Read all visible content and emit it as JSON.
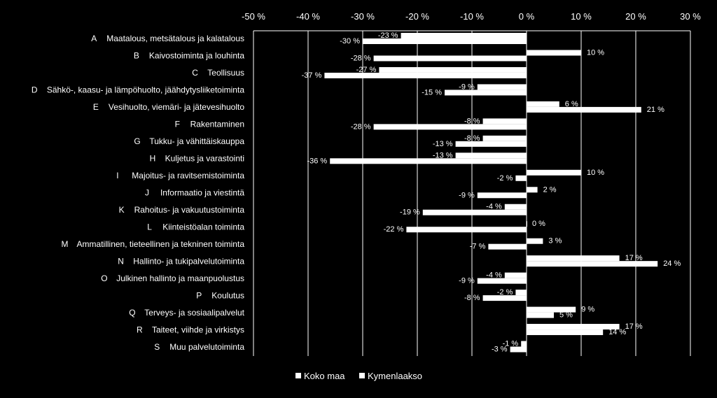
{
  "chart_data": {
    "type": "bar",
    "orientation": "horizontal",
    "xlim": [
      -50,
      30
    ],
    "x_ticks": [
      -50,
      -40,
      -30,
      -20,
      -10,
      0,
      10,
      20,
      30
    ],
    "x_tick_labels": [
      "-50 %",
      "-40 %",
      "-30 %",
      "-20 %",
      "-10 %",
      "0 %",
      "10 %",
      "20 %",
      "30 %"
    ],
    "grid": true,
    "legend_position": "bottom",
    "categories": [
      {
        "code": "A",
        "name": "Maatalous, metsätalous ja kalatalous"
      },
      {
        "code": "B",
        "name": "Kaivostoiminta ja louhinta"
      },
      {
        "code": "C",
        "name": "Teollisuus"
      },
      {
        "code": "D",
        "name": "Sähkö-, kaasu- ja lämpöhuolto, jäähdytysliiketoiminta"
      },
      {
        "code": "E",
        "name": "Vesihuolto, viemäri- ja jätevesihuolto"
      },
      {
        "code": "F",
        "name": "Rakentaminen"
      },
      {
        "code": "G",
        "name": "Tukku- ja vähittäiskauppa"
      },
      {
        "code": "H",
        "name": "Kuljetus ja varastointi"
      },
      {
        "code": "I",
        "name": "Majoitus- ja ravitsemistoiminta"
      },
      {
        "code": "J",
        "name": "Informaatio ja viestintä"
      },
      {
        "code": "K",
        "name": "Rahoitus- ja vakuutustoiminta"
      },
      {
        "code": "L",
        "name": "Kiinteistöalan toiminta"
      },
      {
        "code": "M",
        "name": "Ammatillinen, tieteellinen ja tekninen toiminta"
      },
      {
        "code": "N",
        "name": "Hallinto- ja tukipalvelutoiminta"
      },
      {
        "code": "O",
        "name": "Julkinen hallinto ja maanpuolustus"
      },
      {
        "code": "P",
        "name": "Koulutus"
      },
      {
        "code": "Q",
        "name": "Terveys- ja sosiaalipalvelut"
      },
      {
        "code": "R",
        "name": "Taiteet, viihde ja virkistys"
      },
      {
        "code": "S",
        "name": "Muu palvelutoiminta"
      }
    ],
    "series": [
      {
        "name": "Koko maa",
        "values": [
          -23,
          10,
          -27,
          -9,
          6,
          -8,
          -8,
          -13,
          10,
          2,
          -4,
          0,
          3,
          17,
          -4,
          -2,
          9,
          17,
          -1
        ],
        "labels": [
          "-23 %",
          "10 %",
          "-27 %",
          "-9 %",
          "6 %",
          "-8 %",
          "-8 %",
          "-13 %",
          "10 %",
          "2 %",
          "-4 %",
          "0 %",
          "3 %",
          "17 %",
          "-4 %",
          "-2 %",
          "9 %",
          "17 %",
          "-1 %"
        ]
      },
      {
        "name": "Kymenlaakso",
        "values": [
          -30,
          -28,
          -37,
          -15,
          21,
          -28,
          -13,
          -36,
          -2,
          -9,
          -19,
          -22,
          -7,
          24,
          -9,
          -8,
          5,
          14,
          -3
        ],
        "labels": [
          "-30 %",
          "-28 %",
          "-37 %",
          "-15 %",
          "21 %",
          "-28 %",
          "-13 %",
          "-36 %",
          "-2 %",
          "-9 %",
          "-19 %",
          "-22 %",
          "-7 %",
          "24 %",
          "-9 %",
          "-8 %",
          "5 %",
          "14 %",
          "-3 %"
        ]
      }
    ],
    "colors": {
      "background": "#000000",
      "bars": "#ffffff",
      "text": "#ffffff",
      "grid": "#ffffff"
    }
  }
}
